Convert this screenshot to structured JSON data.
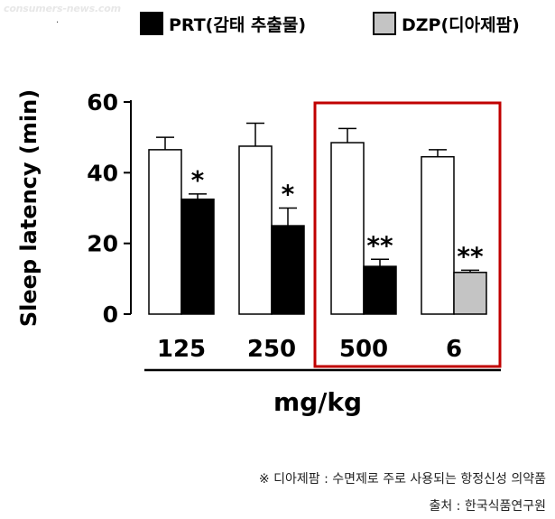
{
  "watermark": "consumers-news.com",
  "stray_mark": "·",
  "legend": [
    {
      "label": "PRT(감태 추출물)",
      "color": "#000000"
    },
    {
      "label": "DZP(디아제팜)",
      "color": "#c4c4c4"
    }
  ],
  "chart_data": {
    "type": "bar",
    "title": "",
    "xlabel": "mg/kg",
    "ylabel": "Sleep latency (min)",
    "ylim": [
      0,
      60
    ],
    "yticks": [
      0,
      20,
      40,
      60
    ],
    "categories": [
      "125",
      "250",
      "500",
      "6"
    ],
    "series": [
      {
        "role": "control",
        "color": "#ffffff",
        "values": [
          46.5,
          47.5,
          48.5,
          44.5
        ],
        "errors": [
          3.5,
          6.5,
          4,
          2
        ]
      },
      {
        "role": "treatment",
        "color_per_bar": [
          "#000000",
          "#000000",
          "#000000",
          "#c4c4c4"
        ],
        "values": [
          32.5,
          25,
          13.5,
          11.8
        ],
        "errors": [
          1.5,
          5,
          2,
          0.6
        ]
      }
    ],
    "annotations": [
      "*",
      "*",
      "**",
      "**"
    ],
    "highlight_box_color": "#c00000"
  },
  "footnotes": [
    "※ 디아제팜 : 수면제로 주로 사용되는 항정신성 의약품",
    "출처 : 한국식품연구원"
  ]
}
